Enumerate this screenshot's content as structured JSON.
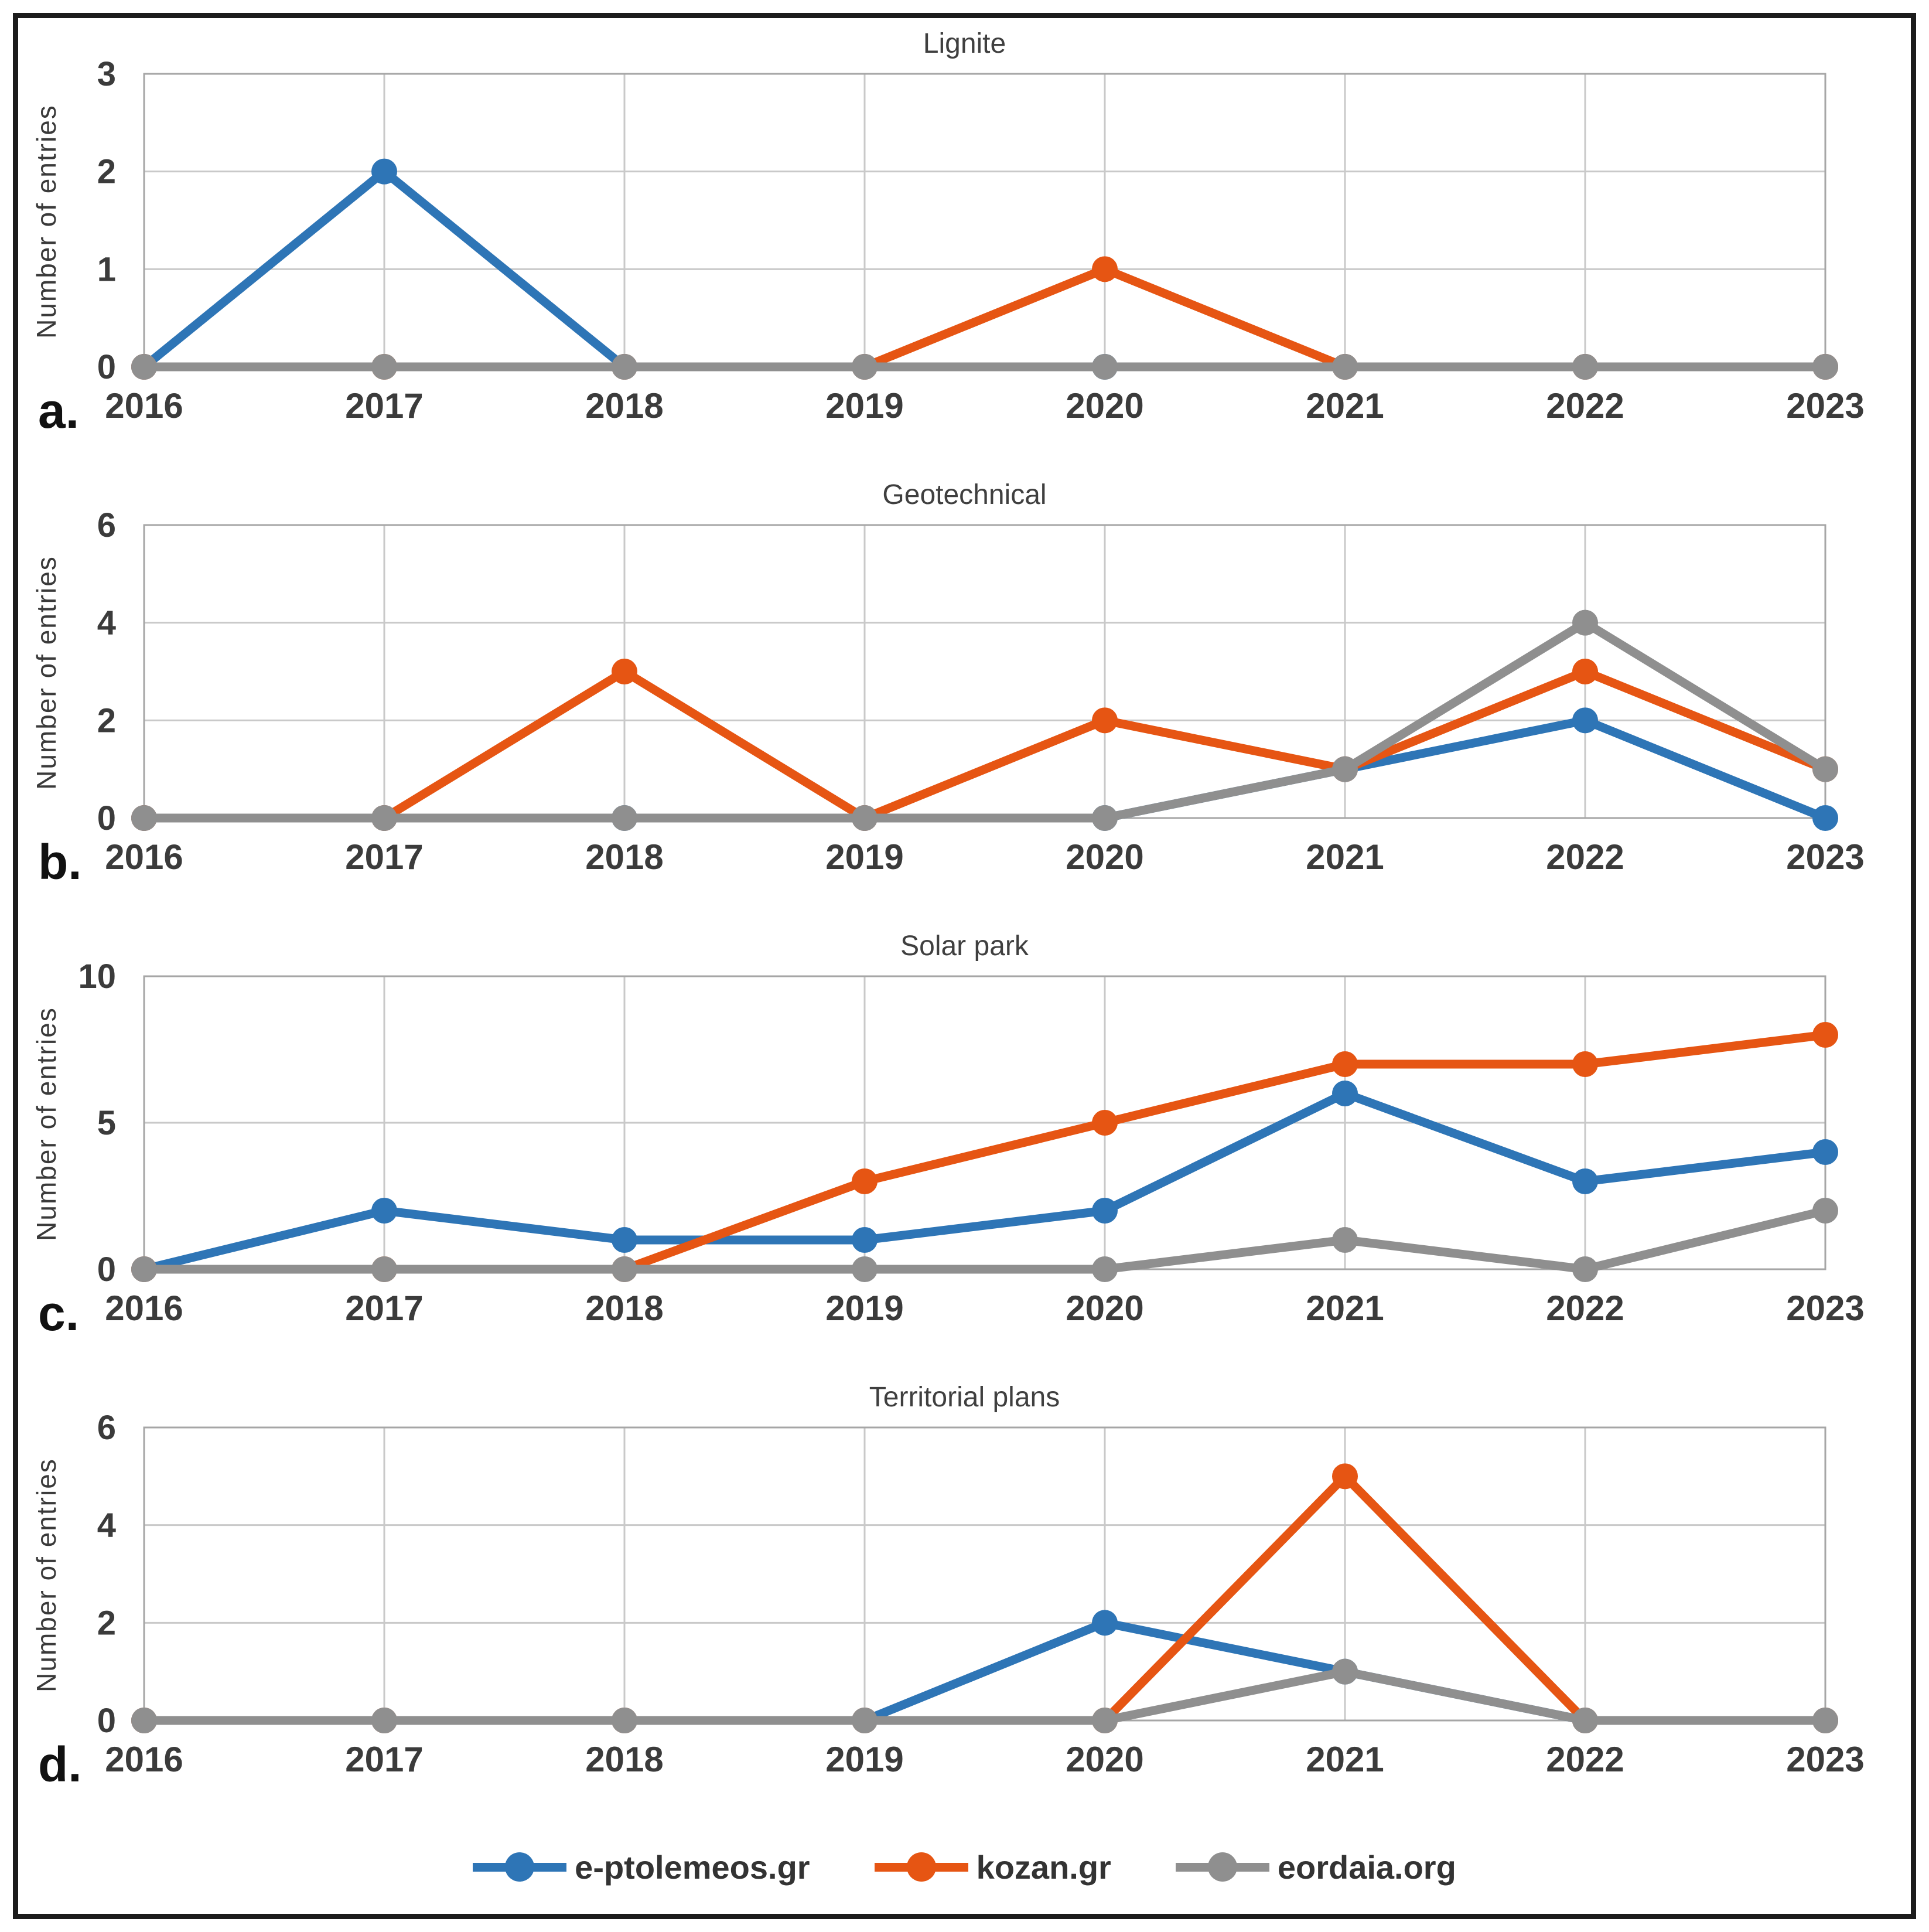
{
  "style": {
    "grid_color": "#c9c9c9",
    "plot_border_color": "#a6a6a6",
    "tick_color": "#3b3b3b",
    "title_color": "#3f3f3f",
    "frame_border_color": "#1c1c1c",
    "series_colors": {
      "blue": "#2E75B6",
      "orange": "#E65513",
      "gray": "#8F8F8F"
    }
  },
  "legend": {
    "items": [
      {
        "label": "e-ptolemeos.gr",
        "color": "#2E75B6"
      },
      {
        "label": "kozan.gr",
        "color": "#E65513"
      },
      {
        "label": "eordaia.org",
        "color": "#8F8F8F"
      }
    ]
  },
  "chart_data": [
    {
      "type": "line",
      "letter": "a.",
      "title": "Lignite",
      "ylabel": "Number of entries",
      "xlabel": "",
      "categories": [
        "2016",
        "2017",
        "2018",
        "2019",
        "2020",
        "2021",
        "2022",
        "2023"
      ],
      "ylim": [
        0,
        3
      ],
      "yticks": [
        0,
        1,
        2,
        3
      ],
      "grid": true,
      "legend_position": "bottom-shared",
      "series": [
        {
          "name": "e-ptolemeos.gr",
          "color": "#2E75B6",
          "values": [
            0,
            2,
            0,
            0,
            0,
            0,
            0,
            0
          ]
        },
        {
          "name": "kozan.gr",
          "color": "#E65513",
          "values": [
            0,
            0,
            0,
            0,
            1,
            0,
            0,
            0
          ]
        },
        {
          "name": "eordaia.org",
          "color": "#8F8F8F",
          "values": [
            0,
            0,
            0,
            0,
            0,
            0,
            0,
            0
          ]
        }
      ]
    },
    {
      "type": "line",
      "letter": "b.",
      "title": "Geotechnical",
      "ylabel": "Number of entries",
      "xlabel": "",
      "categories": [
        "2016",
        "2017",
        "2018",
        "2019",
        "2020",
        "2021",
        "2022",
        "2023"
      ],
      "ylim": [
        0,
        6
      ],
      "yticks": [
        0,
        2,
        4,
        6
      ],
      "grid": true,
      "legend_position": "bottom-shared",
      "series": [
        {
          "name": "e-ptolemeos.gr",
          "color": "#2E75B6",
          "values": [
            0,
            0,
            0,
            0,
            0,
            1,
            2,
            0
          ]
        },
        {
          "name": "kozan.gr",
          "color": "#E65513",
          "values": [
            0,
            0,
            3,
            0,
            2,
            1,
            3,
            1
          ]
        },
        {
          "name": "eordaia.org",
          "color": "#8F8F8F",
          "values": [
            0,
            0,
            0,
            0,
            0,
            1,
            4,
            1
          ]
        }
      ]
    },
    {
      "type": "line",
      "letter": "c.",
      "title": "Solar park",
      "ylabel": "Number of entries",
      "xlabel": "",
      "categories": [
        "2016",
        "2017",
        "2018",
        "2019",
        "2020",
        "2021",
        "2022",
        "2023"
      ],
      "ylim": [
        0,
        10
      ],
      "yticks": [
        0,
        5,
        10
      ],
      "grid": true,
      "legend_position": "bottom-shared",
      "series": [
        {
          "name": "e-ptolemeos.gr",
          "color": "#2E75B6",
          "values": [
            0,
            2,
            1,
            1,
            2,
            6,
            3,
            4
          ]
        },
        {
          "name": "kozan.gr",
          "color": "#E65513",
          "values": [
            0,
            0,
            0,
            3,
            5,
            7,
            7,
            8
          ]
        },
        {
          "name": "eordaia.org",
          "color": "#8F8F8F",
          "values": [
            0,
            0,
            0,
            0,
            0,
            1,
            0,
            2
          ]
        }
      ]
    },
    {
      "type": "line",
      "letter": "d.",
      "title": "Territorial plans",
      "ylabel": "Number of entries",
      "xlabel": "",
      "categories": [
        "2016",
        "2017",
        "2018",
        "2019",
        "2020",
        "2021",
        "2022",
        "2023"
      ],
      "ylim": [
        0,
        6
      ],
      "yticks": [
        0,
        2,
        4,
        6
      ],
      "grid": true,
      "legend_position": "bottom-shared",
      "series": [
        {
          "name": "e-ptolemeos.gr",
          "color": "#2E75B6",
          "values": [
            0,
            0,
            0,
            0,
            2,
            1,
            0,
            0
          ]
        },
        {
          "name": "kozan.gr",
          "color": "#E65513",
          "values": [
            0,
            0,
            0,
            0,
            0,
            5,
            0,
            0
          ]
        },
        {
          "name": "eordaia.org",
          "color": "#8F8F8F",
          "values": [
            0,
            0,
            0,
            0,
            0,
            1,
            0,
            0
          ]
        }
      ]
    }
  ]
}
